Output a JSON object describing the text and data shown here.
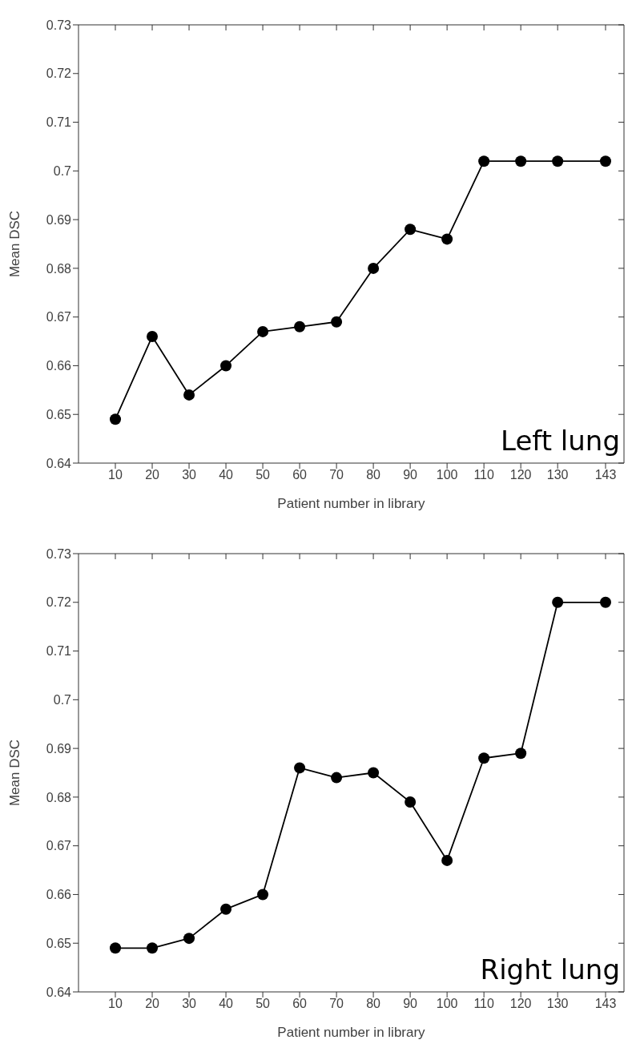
{
  "chart_data": [
    {
      "type": "line",
      "x": [
        10,
        20,
        30,
        40,
        50,
        60,
        70,
        80,
        90,
        100,
        110,
        120,
        130,
        143
      ],
      "xlabel": "Patient number in library",
      "ylabel": "Mean DSC",
      "annotations": [
        "Left lung"
      ],
      "marker": "circle",
      "line_style": "solid",
      "grid": false,
      "legend": false,
      "series": [
        {
          "color": "#000000",
          "values": [
            0.649,
            0.666,
            0.654,
            0.66,
            0.667,
            0.668,
            0.669,
            0.68,
            0.688,
            0.686,
            0.702,
            0.702,
            0.702,
            0.702
          ]
        }
      ],
      "xlim": [
        0,
        148
      ],
      "xticks": [
        10,
        20,
        30,
        40,
        50,
        60,
        70,
        80,
        90,
        100,
        110,
        120,
        130,
        143
      ],
      "ylim": [
        0.64,
        0.73
      ],
      "yticks": [
        0.64,
        0.65,
        0.66,
        0.67,
        0.68,
        0.69,
        {
          "value": 0.7,
          "label": "0.7"
        },
        0.71,
        0.72,
        0.73
      ]
    },
    {
      "type": "line",
      "x": [
        10,
        20,
        30,
        40,
        50,
        60,
        70,
        80,
        90,
        100,
        110,
        120,
        130,
        143
      ],
      "xlabel": "Patient number in library",
      "ylabel": "Mean DSC",
      "annotations": [
        "Right lung"
      ],
      "marker": "circle",
      "line_style": "solid",
      "grid": false,
      "legend": false,
      "series": [
        {
          "color": "#000000",
          "values": [
            0.649,
            0.649,
            0.651,
            0.657,
            0.66,
            0.686,
            0.684,
            0.685,
            0.679,
            0.667,
            0.688,
            0.689,
            0.72,
            0.72
          ]
        }
      ],
      "xlim": [
        0,
        148
      ],
      "xticks": [
        10,
        20,
        30,
        40,
        50,
        60,
        70,
        80,
        90,
        100,
        110,
        120,
        130,
        143
      ],
      "ylim": [
        0.64,
        0.73
      ],
      "yticks": [
        0.64,
        0.65,
        0.66,
        0.67,
        0.68,
        0.69,
        {
          "value": 0.7,
          "label": "0.7"
        },
        0.71,
        0.72,
        0.73
      ]
    }
  ]
}
